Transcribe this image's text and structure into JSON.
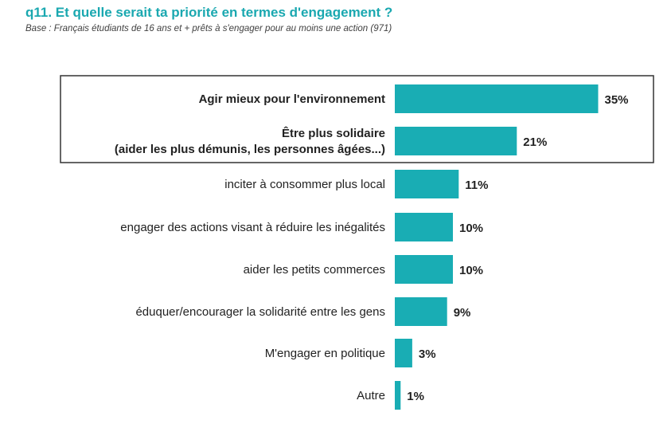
{
  "header": {
    "title": "q11. Et quelle serait ta priorité en termes d'engagement ?",
    "subtitle": "Base : Français étudiants de 16 ans et + prêts à s'engager pour au moins une action (971)"
  },
  "colors": {
    "bar": "#19adb4",
    "title": "#1aa8b0",
    "frame": "#333333"
  },
  "chart_data": {
    "type": "bar",
    "orientation": "horizontal",
    "title": "q11. Et quelle serait ta priorité en termes d'engagement ?",
    "categories": [
      "Agir mieux pour l'environnement",
      "Être plus solidaire (aider les plus démunis, les personnes âgées...)",
      "inciter à consommer plus local",
      "engager des actions visant à réduire les inégalités",
      "aider les petits commerces",
      "éduquer/encourager la solidarité entre les gens",
      "M'engager en politique",
      "Autre"
    ],
    "label_lines": [
      [
        "Agir mieux pour l'environnement"
      ],
      [
        "Être plus solidaire",
        "(aider les plus démunis, les personnes âgées...)"
      ],
      [
        "inciter à consommer plus local"
      ],
      [
        "engager des actions visant à réduire les inégalités"
      ],
      [
        "aider les petits commerces"
      ],
      [
        "éduquer/encourager la solidarité entre les gens"
      ],
      [
        "M'engager en politique"
      ],
      [
        "Autre"
      ]
    ],
    "values": [
      35,
      21,
      11,
      10,
      10,
      9,
      3,
      1
    ],
    "value_labels": [
      "35%",
      "21%",
      "11%",
      "10%",
      "10%",
      "9%",
      "3%",
      "1%"
    ],
    "highlighted": [
      true,
      true,
      false,
      false,
      false,
      false,
      false,
      false
    ],
    "xlim": [
      0,
      35
    ],
    "grid": false,
    "legend": "none"
  }
}
